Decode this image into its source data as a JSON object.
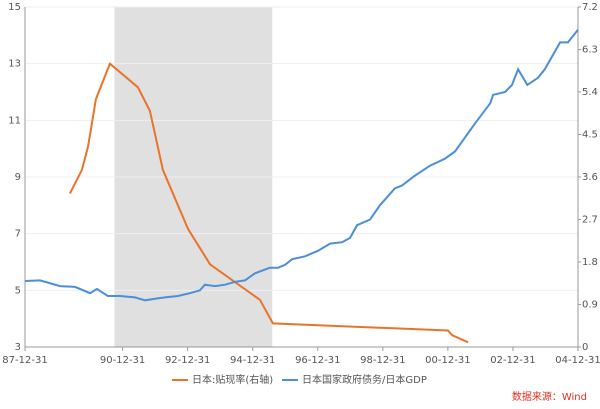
{
  "chart_data": {
    "type": "line",
    "xlim": [
      1988,
      2005
    ],
    "xticks": [
      {
        "value": 1988,
        "label": "87-12-31"
      },
      {
        "value": 1991,
        "label": "90-12-31"
      },
      {
        "value": 1993,
        "label": "92-12-31"
      },
      {
        "value": 1995,
        "label": "94-12-31"
      },
      {
        "value": 1997,
        "label": "96-12-31"
      },
      {
        "value": 1999,
        "label": "98-12-31"
      },
      {
        "value": 2001,
        "label": "00-12-31"
      },
      {
        "value": 2003,
        "label": "02-12-31"
      },
      {
        "value": 2005,
        "label": "04-12-31"
      }
    ],
    "ylim": [
      3,
      15
    ],
    "yticks": [
      3,
      5,
      7,
      9,
      11,
      13,
      15
    ],
    "y2lim": [
      0,
      7.2
    ],
    "y2ticks": [
      0,
      0.9,
      1.8,
      2.7,
      3.6,
      4.5,
      5.4,
      6.3,
      7.2
    ],
    "grid": true,
    "shaded_range": [
      1990.75,
      1995.6
    ],
    "shade_color": "#e0e0e0",
    "legend": "bottom",
    "series": [
      {
        "name": "日本:贴现率(右轴)",
        "color": "#e8742a",
        "axis": "y2",
        "x": [
          1989.38,
          1989.75,
          1989.94,
          1990.18,
          1990.61,
          1991.47,
          1991.84,
          1992.24,
          1993.01,
          1993.69,
          1995.22,
          1995.62,
          2001.0,
          2001.13,
          2001.62
        ],
        "values": [
          3.25,
          3.75,
          4.25,
          5.25,
          6.0,
          5.5,
          5.0,
          3.75,
          2.5,
          1.75,
          1.0,
          0.5,
          0.35,
          0.25,
          0.1
        ]
      },
      {
        "name": "日本国家政府债务/日本GDP",
        "color": "#4a8fd8",
        "x": [
          1988.0,
          1988.46,
          1989.08,
          1989.54,
          1990.0,
          1990.21,
          1990.55,
          1990.92,
          1991.38,
          1991.69,
          1992.0,
          1992.3,
          1992.7,
          1993.07,
          1993.38,
          1993.53,
          1993.84,
          1994.15,
          1994.46,
          1994.76,
          1995.07,
          1995.53,
          1995.78,
          1996.0,
          1996.21,
          1996.61,
          1997.01,
          1997.38,
          1997.75,
          1997.99,
          1998.21,
          1998.61,
          1998.91,
          1999.37,
          1999.59,
          1999.99,
          2000.45,
          2000.91,
          2001.22,
          2001.53,
          2001.84,
          2002.3,
          2002.39,
          2002.76,
          2002.97,
          2003.16,
          2003.44,
          2003.77,
          2003.98,
          2004.45,
          2004.69,
          2005.0
        ],
        "values": [
          5.33,
          5.35,
          5.15,
          5.12,
          4.9,
          5.05,
          4.8,
          4.8,
          4.75,
          4.65,
          4.7,
          4.75,
          4.8,
          4.9,
          5.0,
          5.2,
          5.15,
          5.2,
          5.3,
          5.35,
          5.6,
          5.8,
          5.8,
          5.9,
          6.1,
          6.2,
          6.4,
          6.65,
          6.7,
          6.85,
          7.3,
          7.5,
          8.0,
          8.6,
          8.7,
          9.05,
          9.4,
          9.65,
          9.9,
          10.4,
          10.9,
          11.6,
          11.9,
          12.0,
          12.25,
          12.8,
          12.25,
          12.5,
          12.8,
          13.75,
          13.75,
          14.2
        ]
      }
    ],
    "source": "数据来源：Wind",
    "source_color": "#e0301e"
  }
}
